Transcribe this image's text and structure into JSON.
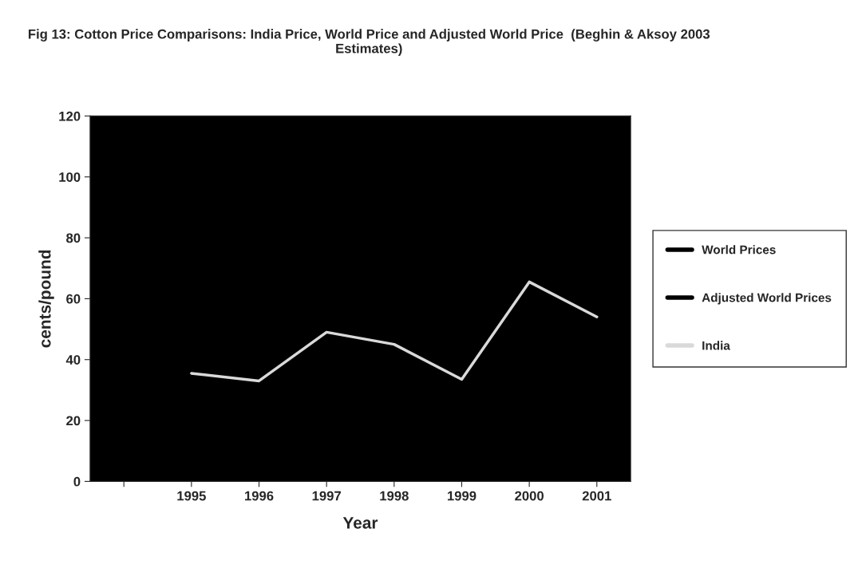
{
  "chart_data": {
    "type": "line",
    "title": "Fig 13: Cotton Price Comparisons: India Price, World Price and Adjusted World Price  (Beghin & Aksoy 2003 Estimates)",
    "xlabel": "Year",
    "ylabel": "cents/pound",
    "categories": [
      null,
      "1995",
      "1996",
      "1997",
      "1998",
      "1999",
      "2000",
      "2001"
    ],
    "series": [
      {
        "name": "World Prices",
        "color": "#000000",
        "values": [
          null,
          null,
          null,
          null,
          null,
          null,
          null,
          null
        ]
      },
      {
        "name": "Adjusted World Prices",
        "color": "#000000",
        "values": [
          null,
          null,
          null,
          null,
          null,
          null,
          null,
          null
        ]
      },
      {
        "name": "India",
        "color": "#d9d9d9",
        "values": [
          null,
          35.5,
          33,
          49,
          45,
          33.5,
          65.5,
          54
        ]
      }
    ],
    "ylim": [
      0,
      120
    ],
    "yticks": [
      0,
      20,
      40,
      60,
      80,
      100,
      120
    ],
    "grid": false,
    "legend": "right"
  }
}
